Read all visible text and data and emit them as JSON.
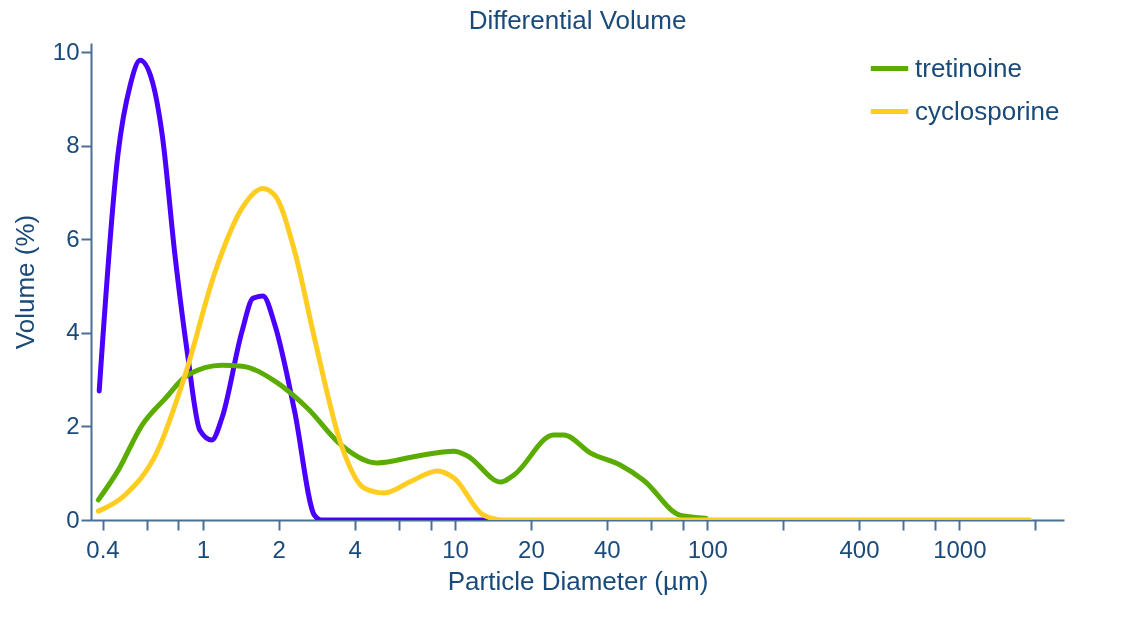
{
  "chart_data": {
    "type": "line",
    "title": "Differential Volume",
    "xlabel": "Particle Diameter (µm)",
    "ylabel": "Volume (%)",
    "log": "x",
    "xlim": [
      0.36,
      2600
    ],
    "ylim": [
      0,
      10.2
    ],
    "xticks": [
      0.4,
      {
        "value": 0.6,
        "label": null
      },
      {
        "value": 0.8,
        "label": null
      },
      1,
      2,
      4,
      {
        "value": 6,
        "label": null
      },
      {
        "value": 8,
        "label": null
      },
      10,
      20,
      40,
      {
        "value": 60,
        "label": null
      },
      {
        "value": 80,
        "label": null
      },
      100,
      {
        "value": 200,
        "label": null
      },
      400,
      {
        "value": 600,
        "label": null
      },
      {
        "value": 800,
        "label": null
      },
      1000,
      {
        "value": 2000,
        "label": null
      }
    ],
    "yticks": [
      0,
      2,
      4,
      6,
      8,
      10
    ],
    "grid": false,
    "legend": "top right",
    "line_style": "solid",
    "series": [
      {
        "color": "#4a00ff",
        "x": [
          0.388,
          0.46,
          0.515,
          0.564,
          0.63,
          0.69,
          0.775,
          0.87,
          0.973,
          1.085,
          1.19,
          1.43,
          1.58,
          1.73,
          1.93,
          2.31,
          2.77,
          2.95,
          13.3
        ],
        "values": [
          2.76,
          7.8,
          9.3,
          9.83,
          9.38,
          8.23,
          5.66,
          3.53,
          1.92,
          1.71,
          2.18,
          4.04,
          4.74,
          4.79,
          4.17,
          2.33,
          0.1,
          0,
          0
        ]
      },
      {
        "name": "tretinoine",
        "color": "#5aad00",
        "x": [
          0.385,
          0.46,
          0.574,
          0.71,
          0.87,
          1.19,
          1.43,
          1.93,
          2.6,
          3.54,
          4.9,
          7.1,
          9.9,
          11.2,
          15.2,
          17.1,
          24.6,
          27,
          34.5,
          45,
          55.9,
          78.5,
          98.9
        ],
        "values": [
          0.43,
          1.05,
          2.03,
          2.6,
          3.1,
          3.31,
          3.29,
          2.97,
          2.39,
          1.6,
          1.22,
          1.37,
          1.47,
          1.37,
          0.81,
          0.96,
          1.82,
          1.82,
          1.43,
          1.18,
          0.85,
          0.1,
          0.04
        ]
      },
      {
        "name": "cyclosporine",
        "color": "#ffcc22",
        "x": [
          0.385,
          0.49,
          0.66,
          0.85,
          1.12,
          1.43,
          1.73,
          1.93,
          2.31,
          2.77,
          3.54,
          4.37,
          5.24,
          6.7,
          8.5,
          9.9,
          13,
          15.6,
          1900
        ],
        "values": [
          0.19,
          0.53,
          1.47,
          3.1,
          5.32,
          6.67,
          7.09,
          6.94,
          5.75,
          3.89,
          1.6,
          0.68,
          0.58,
          0.83,
          1.05,
          0.9,
          0.1,
          0,
          0
        ]
      }
    ]
  }
}
